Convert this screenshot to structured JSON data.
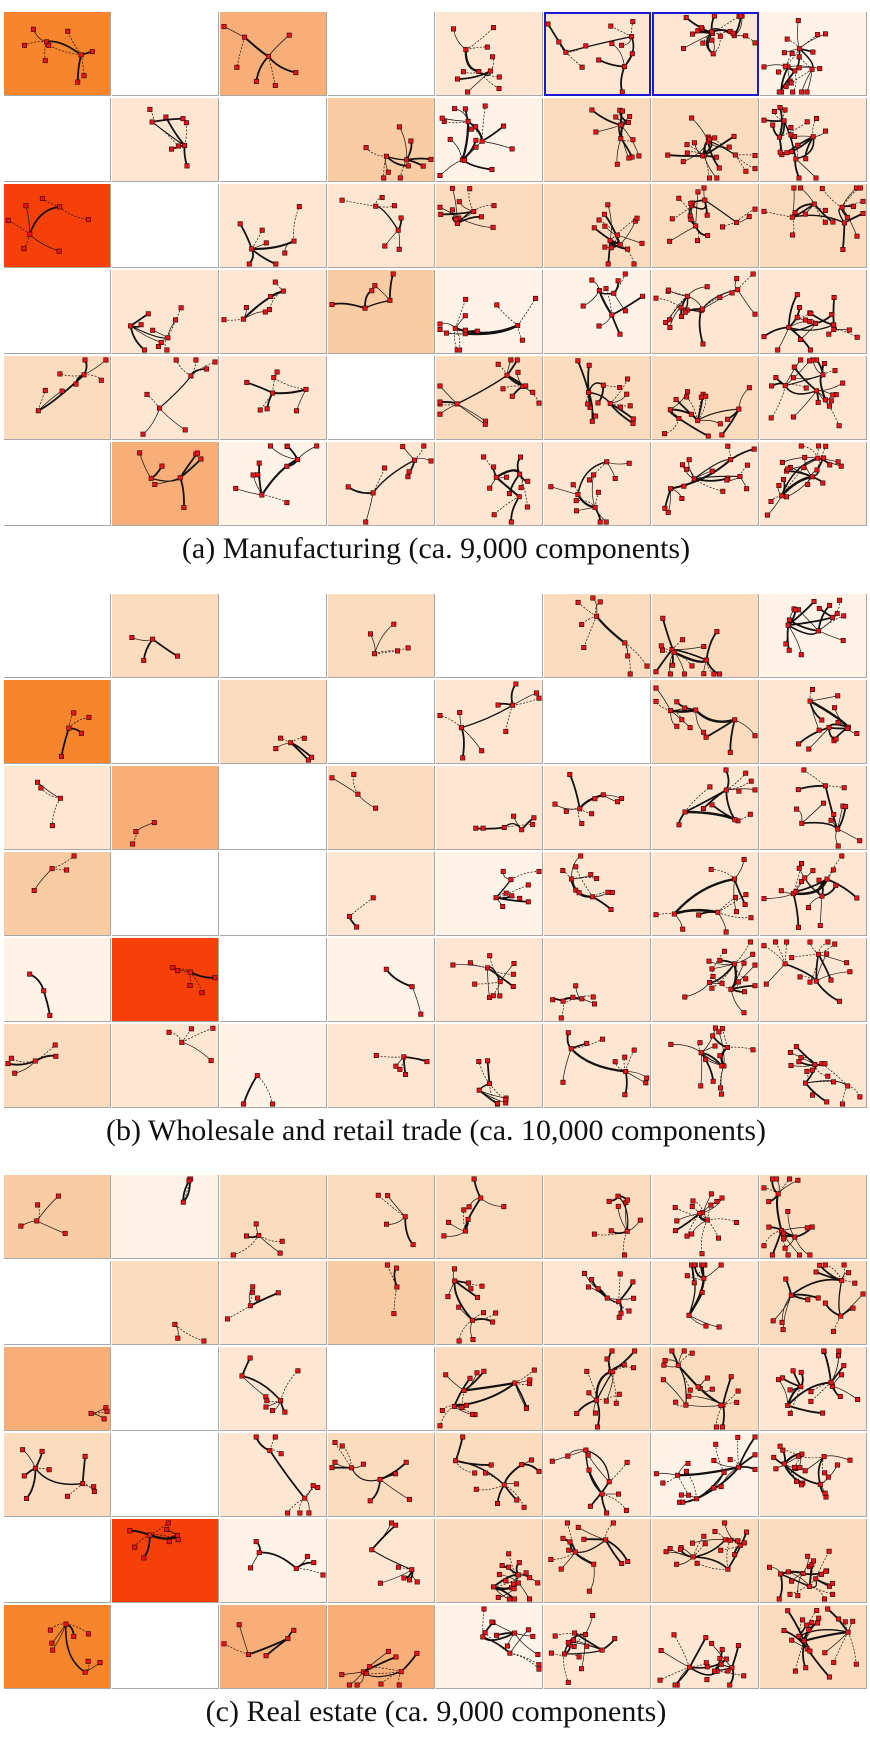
{
  "panels": [
    {
      "caption": "(a)  Manufacturing (ca. 9,000 components)",
      "levels": [
        [
          6,
          -1,
          4,
          -1,
          1,
          1,
          1,
          0
        ],
        [
          -1,
          1,
          -1,
          3,
          0,
          2,
          2,
          1
        ],
        [
          9,
          -1,
          1,
          1,
          2,
          2,
          2,
          2
        ],
        [
          -1,
          1,
          1,
          3,
          0,
          0,
          1,
          1
        ],
        [
          2,
          1,
          1,
          -1,
          2,
          2,
          2,
          1
        ],
        [
          -1,
          4,
          0,
          1,
          1,
          1,
          1,
          1
        ]
      ],
      "highlighted": [
        [
          0,
          5
        ],
        [
          0,
          6
        ]
      ]
    },
    {
      "caption": "(b)  Wholesale and retail trade (ca. 10,000 components)",
      "levels": [
        [
          -1,
          2,
          -1,
          2,
          -1,
          2,
          2,
          0
        ],
        [
          6,
          -1,
          2,
          -1,
          1,
          -1,
          2,
          1
        ],
        [
          1,
          4,
          -1,
          2,
          1,
          1,
          1,
          1
        ],
        [
          3,
          -1,
          -1,
          1,
          0,
          1,
          1,
          1
        ],
        [
          0,
          9,
          -1,
          0,
          1,
          1,
          1,
          1
        ],
        [
          2,
          1,
          0,
          1,
          1,
          1,
          1,
          1
        ]
      ],
      "highlighted": []
    },
    {
      "caption": "(c)  Real estate (ca. 9,000 components)",
      "levels": [
        [
          3,
          0,
          2,
          2,
          2,
          2,
          1,
          2
        ],
        [
          -1,
          2,
          1,
          3,
          2,
          1,
          1,
          2
        ],
        [
          4,
          -1,
          1,
          -1,
          2,
          2,
          2,
          1
        ],
        [
          2,
          -1,
          1,
          2,
          2,
          1,
          0,
          1
        ],
        [
          -1,
          9,
          0,
          1,
          2,
          2,
          2,
          2
        ],
        [
          6,
          -1,
          4,
          4,
          0,
          1,
          1,
          2
        ]
      ],
      "highlighted": []
    }
  ],
  "colors": {
    "palette": [
      "#fff3e8",
      "#fde7d2",
      "#fbdcbe",
      "#facca4",
      "#f8ae78",
      "#f79a5a",
      "#f6852e",
      "#f56a1a",
      "#f4561a",
      "#f5400a"
    ],
    "empty": "#ffffff",
    "grid_line": "#a8a8a8",
    "highlight": "#1a1ad0",
    "node": "#e8141a",
    "node_border": "#2a0000",
    "edge": "#111111"
  }
}
